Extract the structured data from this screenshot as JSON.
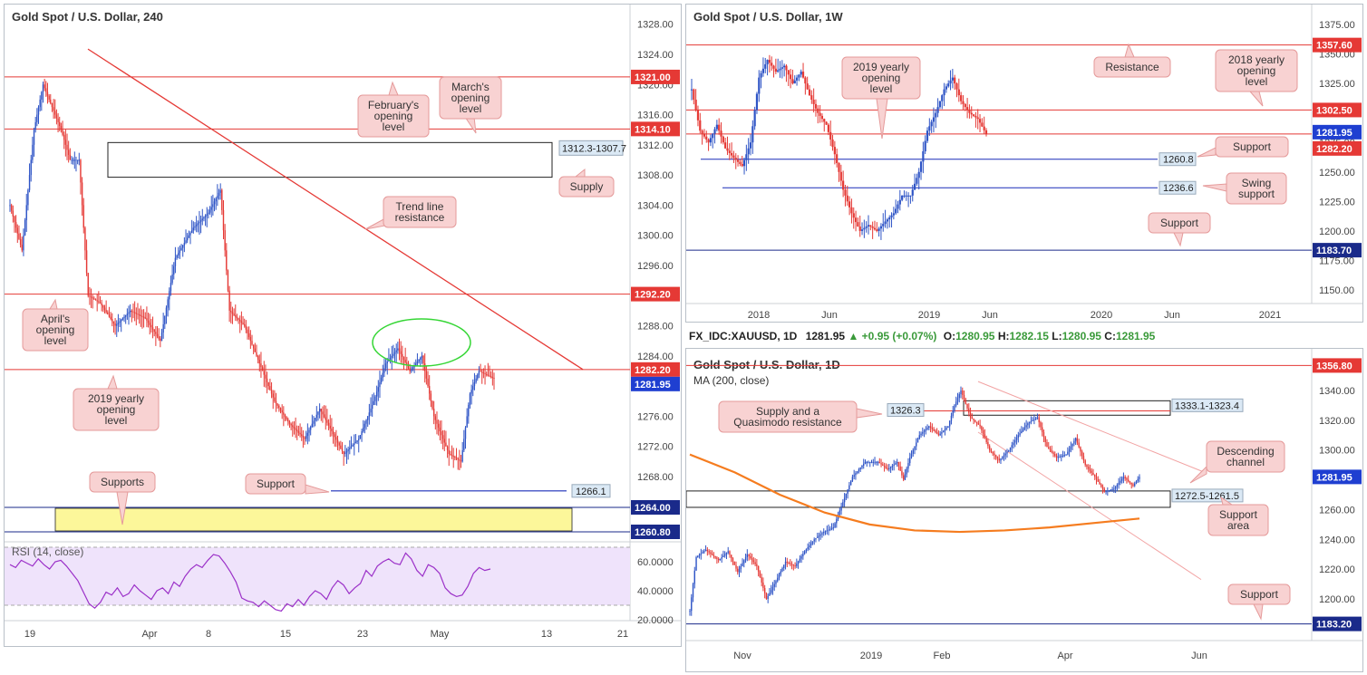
{
  "colors": {
    "up": "#2e54c6",
    "down": "#e53935",
    "resistance": "#e53935",
    "support": "#1a2bb8",
    "callout_bg": "#f8d2d2",
    "callout_border": "#e59a9a",
    "supply_fill": "#ffffff",
    "support_zone": "#fcf79a",
    "rsi_band": "#efe3fb",
    "rsi_line": "#9b30c8",
    "ma": "#f57c1f",
    "ellipse": "#35d635",
    "trend": "#e53935",
    "channel": "#f2a3a3"
  },
  "chart_data": [
    {
      "id": "h4",
      "type": "candlestick",
      "title": "Gold Spot / U.S. Dollar, 240",
      "ylim": [
        1260,
        1331
      ],
      "y_ticks": [
        "1328.00",
        "1324.00",
        "1320.00",
        "1316.00",
        "1312.00",
        "1308.00",
        "1304.00",
        "1300.00",
        "1296.00",
        "1292.00",
        "1288.00",
        "1284.00",
        "1280.00",
        "1276.00",
        "1272.00",
        "1268.00"
      ],
      "x_ticks": [
        "19",
        "Apr",
        "8",
        "15",
        "23",
        "May",
        "13",
        "21"
      ],
      "price_labels": [
        {
          "text": "1321.00",
          "value": 1321.0,
          "kind": "red"
        },
        {
          "text": "1314.10",
          "value": 1314.1,
          "kind": "red"
        },
        {
          "text": "1292.20",
          "value": 1292.2,
          "kind": "red"
        },
        {
          "text": "1282.20",
          "value": 1282.2,
          "kind": "red"
        },
        {
          "text": "1281.95",
          "value": 1281.95,
          "kind": "blue"
        },
        {
          "text": "1264.00",
          "value": 1264.0,
          "kind": "dark"
        },
        {
          "text": "1260.80",
          "value": 1260.8,
          "kind": "dark"
        }
      ],
      "levels": [
        {
          "name": "February's opening level",
          "value": 1321.0,
          "color": "red"
        },
        {
          "name": "March's opening level",
          "value": 1314.1,
          "color": "red"
        },
        {
          "name": "April's opening level",
          "value": 1292.2,
          "color": "red"
        },
        {
          "name": "2019 yearly opening level",
          "value": 1282.2,
          "color": "red"
        },
        {
          "name": "Support",
          "value": 1266.1,
          "color": "blue"
        }
      ],
      "supply_zone": {
        "label": "1312.3-1307.7",
        "high": 1312.3,
        "low": 1307.7
      },
      "support_zone": {
        "high": 1264.0,
        "low": 1260.8
      },
      "support_label": "1266.1",
      "trend_line": {
        "from": 1325.0,
        "to": 1282.2
      },
      "annotations": [
        "February's opening level",
        "March's opening level",
        "Supply",
        "Trend line resistance",
        "April's opening level",
        "2019 yearly opening level",
        "Support",
        "Supports"
      ],
      "rsi": {
        "label": "RSI (14, close)",
        "ylim": [
          20,
          70
        ],
        "band": [
          30,
          70
        ],
        "ticks": [
          "60.0000",
          "40.0000",
          "20.0000"
        ],
        "values": [
          58,
          55,
          62,
          60,
          57,
          63,
          58,
          55,
          60,
          62,
          57,
          52,
          48,
          40,
          30,
          27,
          33,
          40,
          37,
          42,
          36,
          38,
          44,
          40,
          37,
          34,
          40,
          42,
          38,
          46,
          43,
          50,
          54,
          58,
          56,
          60,
          66,
          64,
          60,
          54,
          45,
          35,
          33,
          32,
          29,
          34,
          30,
          27,
          26,
          31,
          29,
          34,
          30,
          36,
          40,
          38,
          34,
          42,
          47,
          44,
          38,
          42,
          45,
          54,
          50,
          57,
          60,
          62,
          59,
          58,
          66,
          62,
          54,
          50,
          58,
          56,
          52,
          42,
          38,
          36,
          37,
          42,
          52,
          56,
          54,
          55
        ],
        "vals_dense": [
          58,
          56,
          61,
          59,
          57,
          62,
          58,
          55,
          60,
          61,
          57,
          52,
          47,
          39,
          31,
          28,
          32,
          39,
          37,
          42,
          36,
          38,
          44,
          40,
          37,
          34,
          40,
          42,
          38,
          46,
          43,
          50,
          55,
          58,
          56,
          61,
          65,
          64,
          59,
          53,
          46,
          35,
          33,
          32,
          29,
          33,
          30,
          27,
          26,
          31,
          29,
          34,
          30,
          36,
          40,
          38,
          34,
          42,
          47,
          44,
          38,
          42,
          45,
          54,
          50,
          57,
          60,
          62,
          59,
          58,
          66,
          62,
          54,
          50,
          58,
          56,
          52,
          42,
          38,
          36,
          37,
          43,
          52,
          56,
          54,
          55
        ]
      }
    },
    {
      "id": "w1",
      "type": "candlestick",
      "title": "Gold Spot / U.S. Dollar, 1W",
      "ylim": [
        1140,
        1385
      ],
      "y_ticks": [
        "1375.00",
        "1350.00",
        "1325.00",
        "1300.00",
        "1275.00",
        "1250.00",
        "1225.00",
        "1200.00",
        "1175.00",
        "1150.00"
      ],
      "x_ticks": [
        "2018",
        "Jun",
        "2019",
        "Jun",
        "2020",
        "Jun",
        "2021"
      ],
      "price_labels": [
        {
          "text": "1357.60",
          "value": 1357.6,
          "kind": "red"
        },
        {
          "text": "1302.50",
          "value": 1302.5,
          "kind": "red"
        },
        {
          "text": "1281.95",
          "value": 1281.95,
          "kind": "blue"
        },
        {
          "text": "1282.20",
          "value": 1282.2,
          "kind": "red"
        },
        {
          "text": "1183.70",
          "value": 1183.7,
          "kind": "dark"
        }
      ],
      "levels": [
        {
          "name": "Resistance",
          "value": 1357.6,
          "color": "red"
        },
        {
          "name": "2018 yearly opening level",
          "value": 1302.5,
          "color": "red"
        },
        {
          "name": "2019 yearly opening level",
          "value": 1282.2,
          "color": "red"
        },
        {
          "name": "Support",
          "value": 1260.8,
          "color": "blue"
        },
        {
          "name": "Swing support",
          "value": 1236.6,
          "color": "blue"
        },
        {
          "name": "Support",
          "value": 1183.7,
          "color": "dark"
        }
      ],
      "level_tags": [
        "1260.8",
        "1236.6"
      ],
      "annotations": [
        "2019 yearly opening level",
        "Resistance",
        "2018 yearly opening level",
        "Support",
        "Swing support",
        "Support"
      ]
    },
    {
      "id": "d1",
      "type": "candlestick",
      "title": "Gold Spot / U.S. Dollar, 1D",
      "symbol_bar": {
        "symbol": "FX_IDC:XAUUSD, 1D",
        "last": "1281.95",
        "change": "+0.95 (+0.07%)",
        "open": "1280.95",
        "high": "1282.15",
        "low": "1280.95",
        "close": "1281.95",
        "o": "O:",
        "h": "H:",
        "l": "L:",
        "c": "C:"
      },
      "ma_label": "MA (200, close)",
      "ylim": [
        1175,
        1358
      ],
      "y_ticks": [
        "1340.00",
        "1320.00",
        "1300.00",
        "1280.00",
        "1260.00",
        "1240.00",
        "1220.00",
        "1200.00"
      ],
      "x_ticks": [
        "Nov",
        "2019",
        "Feb",
        "Apr",
        "Jun"
      ],
      "price_labels": [
        {
          "text": "1356.80",
          "value": 1356.8,
          "kind": "red"
        },
        {
          "text": "1281.95",
          "value": 1281.95,
          "kind": "blue"
        },
        {
          "text": "1183.20",
          "value": 1183.2,
          "kind": "dark"
        }
      ],
      "supply_zone": {
        "label": "1333.1-1323.4",
        "high": 1333.1,
        "low": 1323.4
      },
      "quasimodo": {
        "label": "1326.3",
        "value": 1326.3
      },
      "support_zone": {
        "label": "1272.5-1261.5",
        "high": 1272.5,
        "low": 1261.5
      },
      "annotations": [
        "Supply and a Quasimodo resistance",
        "Descending channel",
        "Support area",
        "Support"
      ]
    }
  ],
  "callouts": {
    "feb": [
      "February's",
      "opening",
      "level"
    ],
    "mar": [
      "March's",
      "opening",
      "level"
    ],
    "supply": [
      "Supply"
    ],
    "trend": [
      "Trend line",
      "resistance"
    ],
    "april": [
      "April's",
      "opening",
      "level"
    ],
    "y2019": [
      "2019 yearly",
      "opening",
      "level"
    ],
    "support": [
      "Support"
    ],
    "supports": [
      "Supports"
    ],
    "w_y2019": [
      "2019 yearly",
      "opening",
      "level"
    ],
    "w_res": [
      "Resistance"
    ],
    "w_y2018": [
      "2018 yearly",
      "opening",
      "level"
    ],
    "w_sup": [
      "Support"
    ],
    "w_swing": [
      "Swing",
      "support"
    ],
    "w_sup2": [
      "Support"
    ],
    "d_supply": [
      "Supply and a",
      "Quasimodo resistance"
    ],
    "d_channel": [
      "Descending",
      "channel"
    ],
    "d_area": [
      "Support",
      "area"
    ],
    "d_sup": [
      "Support"
    ]
  }
}
